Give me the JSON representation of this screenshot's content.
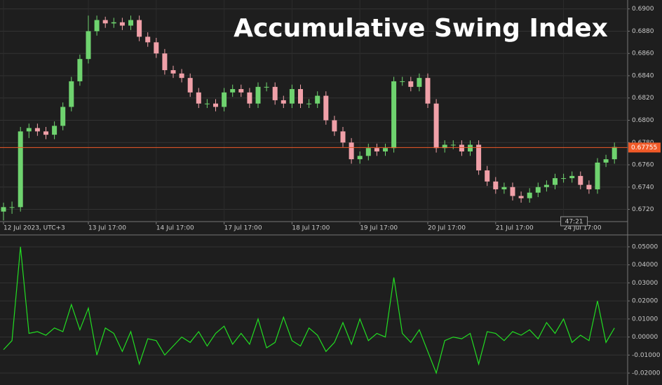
{
  "chart_data": [
    {
      "type": "candlestick",
      "title": "Accumulative Swing Index",
      "categories": [
        "12 Jul 2023, UTC+3",
        null,
        null,
        null,
        null,
        null,
        null,
        null,
        null,
        null,
        "13 Jul 17:00",
        null,
        null,
        null,
        null,
        null,
        null,
        null,
        "14 Jul 17:00",
        null,
        null,
        null,
        null,
        null,
        null,
        null,
        "17 Jul 17:00",
        null,
        null,
        null,
        null,
        null,
        null,
        null,
        "18 Jul 17:00",
        null,
        null,
        null,
        null,
        null,
        null,
        null,
        "19 Jul 17:00",
        null,
        null,
        null,
        null,
        null,
        null,
        null,
        "20 Jul 17:00",
        null,
        null,
        null,
        null,
        null,
        null,
        null,
        "21 Jul 17:00",
        null,
        null,
        null,
        null,
        null,
        null,
        null,
        "24 Jul 17:00",
        null,
        null,
        null,
        null,
        null,
        null
      ],
      "open": [
        0.6718,
        0.6722,
        0.6722,
        0.679,
        0.6793,
        0.679,
        0.6787,
        0.6795,
        0.6812,
        0.6835,
        0.6855,
        0.688,
        0.689,
        0.6887,
        0.6888,
        0.6885,
        0.689,
        0.6875,
        0.687,
        0.686,
        0.6845,
        0.6842,
        0.6838,
        0.6825,
        0.6815,
        0.6815,
        0.6812,
        0.6825,
        0.6828,
        0.6825,
        0.6815,
        0.683,
        0.683,
        0.6818,
        0.6815,
        0.6828,
        0.6815,
        0.6815,
        0.6822,
        0.68,
        0.679,
        0.678,
        0.6765,
        0.6768,
        0.6775,
        0.6772,
        0.6775,
        0.6835,
        0.6835,
        0.683,
        0.6838,
        0.6815,
        0.6775,
        0.6778,
        0.6778,
        0.6772,
        0.6778,
        0.6755,
        0.6745,
        0.6738,
        0.674,
        0.6732,
        0.673,
        0.6735,
        0.674,
        0.6742,
        0.6748,
        0.6748,
        0.675,
        0.6742,
        0.6738,
        0.6762,
        0.6765
      ],
      "high": [
        0.6726,
        0.6727,
        0.6794,
        0.6797,
        0.6797,
        0.6794,
        0.6799,
        0.6816,
        0.6839,
        0.6859,
        0.6894,
        0.6894,
        0.6893,
        0.6892,
        0.6892,
        0.6894,
        0.6894,
        0.6879,
        0.6874,
        0.6864,
        0.6849,
        0.6846,
        0.6842,
        0.6829,
        0.6819,
        0.6819,
        0.6829,
        0.6832,
        0.6832,
        0.6829,
        0.6834,
        0.6834,
        0.6834,
        0.6822,
        0.6832,
        0.6832,
        0.6819,
        0.6826,
        0.6826,
        0.6804,
        0.6794,
        0.6784,
        0.6772,
        0.6779,
        0.6779,
        0.6779,
        0.6839,
        0.6839,
        0.6839,
        0.6842,
        0.6842,
        0.6819,
        0.6782,
        0.6782,
        0.6782,
        0.6782,
        0.6782,
        0.6759,
        0.6749,
        0.6744,
        0.6744,
        0.6736,
        0.6739,
        0.6744,
        0.6746,
        0.6752,
        0.6752,
        0.6754,
        0.6754,
        0.6746,
        0.6766,
        0.6769,
        0.678
      ],
      "low": [
        0.671,
        0.6716,
        0.6718,
        0.6784,
        0.6786,
        0.6783,
        0.6783,
        0.6791,
        0.6808,
        0.6831,
        0.6851,
        0.6876,
        0.6883,
        0.6883,
        0.6881,
        0.6881,
        0.6871,
        0.6866,
        0.6856,
        0.6841,
        0.6838,
        0.6834,
        0.6821,
        0.6811,
        0.6811,
        0.6808,
        0.6808,
        0.6821,
        0.6821,
        0.6811,
        0.6811,
        0.6826,
        0.6814,
        0.6811,
        0.6811,
        0.6811,
        0.6811,
        0.6811,
        0.6796,
        0.6786,
        0.6776,
        0.6761,
        0.6761,
        0.6764,
        0.6768,
        0.6768,
        0.6771,
        0.6831,
        0.6826,
        0.6826,
        0.6811,
        0.6771,
        0.6771,
        0.6774,
        0.6768,
        0.6768,
        0.6751,
        0.6741,
        0.6734,
        0.6734,
        0.6728,
        0.6726,
        0.6726,
        0.6731,
        0.6736,
        0.6738,
        0.6744,
        0.6744,
        0.6738,
        0.6734,
        0.6734,
        0.6758,
        0.6761
      ],
      "close": [
        0.6722,
        0.6722,
        0.679,
        0.6793,
        0.679,
        0.6787,
        0.6795,
        0.6812,
        0.6835,
        0.6855,
        0.688,
        0.689,
        0.6887,
        0.6888,
        0.6885,
        0.689,
        0.6875,
        0.687,
        0.686,
        0.6845,
        0.6842,
        0.6838,
        0.6825,
        0.6815,
        0.6815,
        0.6812,
        0.6825,
        0.6828,
        0.6825,
        0.6815,
        0.683,
        0.683,
        0.6818,
        0.6815,
        0.6828,
        0.6815,
        0.6815,
        0.6822,
        0.68,
        0.679,
        0.678,
        0.6765,
        0.6768,
        0.6775,
        0.6772,
        0.6775,
        0.6835,
        0.6835,
        0.683,
        0.6838,
        0.6815,
        0.6775,
        0.6778,
        0.6778,
        0.6772,
        0.6778,
        0.6755,
        0.6745,
        0.6738,
        0.674,
        0.6732,
        0.673,
        0.6735,
        0.674,
        0.6742,
        0.6748,
        0.6748,
        0.675,
        0.6742,
        0.6738,
        0.6762,
        0.6765,
        0.6776
      ],
      "up_color": "#6fd36f",
      "down_color": "#f0a0a8",
      "current_price": 0.67755,
      "current_price_color": "#f05a28",
      "timer": "47:21",
      "ylim": [
        0.6709,
        0.6908
      ],
      "yticks": [
        {
          "value": 0.672,
          "label": "0.6720"
        },
        {
          "value": 0.674,
          "label": "0.6740"
        },
        {
          "value": 0.676,
          "label": "0.6760"
        },
        {
          "value": 0.678,
          "label": "0.6780"
        },
        {
          "value": 0.68,
          "label": "0.6800"
        },
        {
          "value": 0.682,
          "label": "0.6820"
        },
        {
          "value": 0.684,
          "label": "0.6840"
        },
        {
          "value": 0.686,
          "label": "0.6860"
        },
        {
          "value": 0.688,
          "label": "0.6880"
        },
        {
          "value": 0.69,
          "label": "0.6900"
        }
      ],
      "grid": true
    },
    {
      "type": "line",
      "values": [
        -0.007,
        -0.002,
        0.05,
        0.002,
        0.003,
        0.001,
        0.005,
        0.003,
        0.018,
        0.004,
        0.016,
        -0.01,
        0.005,
        0.002,
        -0.008,
        0.003,
        -0.015,
        -0.001,
        -0.002,
        -0.01,
        -0.005,
        0.0,
        -0.003,
        0.003,
        -0.005,
        0.002,
        0.006,
        -0.004,
        0.002,
        -0.004,
        0.01,
        -0.006,
        -0.003,
        0.011,
        -0.002,
        -0.005,
        0.005,
        0.001,
        -0.008,
        -0.003,
        0.008,
        -0.004,
        0.01,
        -0.002,
        0.002,
        0.0,
        0.033,
        0.002,
        -0.003,
        0.004,
        -0.008,
        -0.02,
        -0.002,
        0.0,
        -0.001,
        0.002,
        -0.015,
        0.003,
        0.002,
        -0.002,
        0.003,
        0.001,
        0.004,
        -0.001,
        0.008,
        0.002,
        0.01,
        -0.003,
        0.001,
        -0.002,
        0.02,
        -0.003,
        0.005
      ],
      "color": "#22dd22",
      "ylim": [
        -0.0266,
        0.0562
      ],
      "yticks": [
        {
          "value": -0.02,
          "label": "-0.02000"
        },
        {
          "value": -0.01,
          "label": "-0.01000"
        },
        {
          "value": 0,
          "label": "0.00000"
        },
        {
          "value": 0.01,
          "label": "0.01000"
        },
        {
          "value": 0.02,
          "label": "0.02000"
        },
        {
          "value": 0.03,
          "label": "0.03000"
        },
        {
          "value": 0.04,
          "label": "0.04000"
        },
        {
          "value": 0.05,
          "label": "0.05000"
        }
      ],
      "grid": true
    }
  ]
}
